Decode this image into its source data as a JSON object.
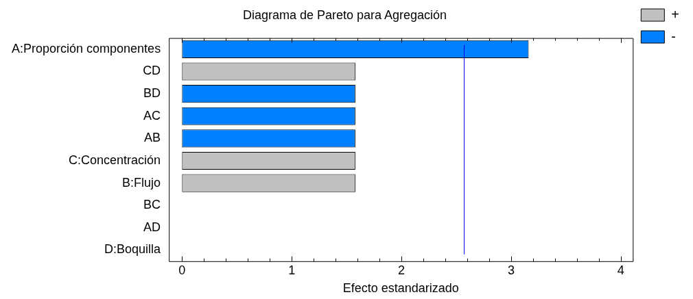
{
  "chart_data": {
    "type": "bar",
    "orientation": "horizontal",
    "stacked": true,
    "title": "Diagrama de Pareto para Agregación",
    "xlabel": "Efecto estandarizado",
    "categories": [
      "A:Proporción componentes",
      "CD",
      "BD",
      "AC",
      "AB",
      "C:Concentración",
      "B:Flujo",
      "BC",
      "AD",
      "D:Boquilla"
    ],
    "series": [
      {
        "name": "+",
        "color": "#c0c0c0",
        "values": [
          null,
          1.58,
          null,
          null,
          null,
          1.58,
          1.58,
          0,
          0,
          0
        ]
      },
      {
        "name": "-",
        "color": "#0080ff",
        "values": [
          3.16,
          null,
          1.58,
          1.58,
          1.58,
          null,
          null,
          null,
          null,
          null
        ]
      }
    ],
    "xlim": [
      -0.12,
      4.11
    ],
    "xticks": [
      0,
      {
        "value": 0.2,
        "label": null
      },
      {
        "value": 0.4,
        "label": null
      },
      {
        "value": 0.6,
        "label": null
      },
      {
        "value": 0.8,
        "label": null
      },
      1,
      {
        "value": 1.2,
        "label": null
      },
      {
        "value": 1.4,
        "label": null
      },
      {
        "value": 1.6,
        "label": null
      },
      {
        "value": 1.8,
        "label": null
      },
      2,
      {
        "value": 2.2,
        "label": null
      },
      {
        "value": 2.4,
        "label": null
      },
      {
        "value": 2.6,
        "label": null
      },
      {
        "value": 2.8,
        "label": null
      },
      3,
      {
        "value": 3.2,
        "label": null
      },
      {
        "value": 3.4,
        "label": null
      },
      {
        "value": 3.6,
        "label": null
      },
      {
        "value": 3.8,
        "label": null
      },
      4
    ],
    "ref_lines": [
      {
        "axis": "x",
        "value": 2.57,
        "color": "#0000ff"
      }
    ],
    "grid": false,
    "legend": "top right"
  }
}
